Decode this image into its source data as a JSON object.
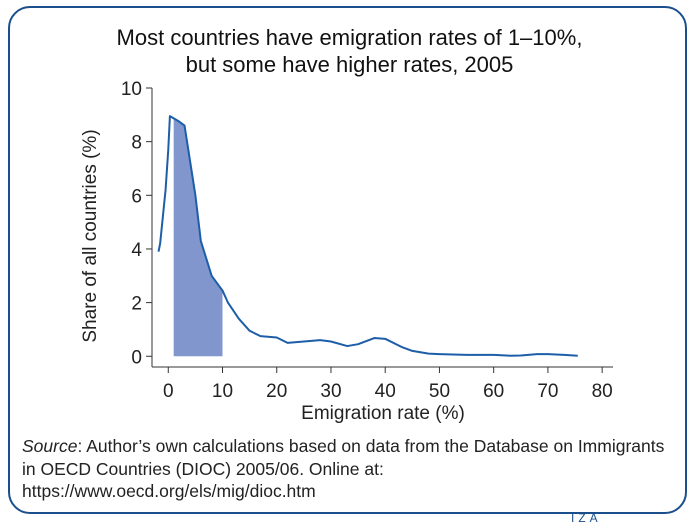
{
  "chart_data": {
    "type": "area",
    "title_line1": "Most countries have emigration rates of 1–10%,",
    "title_line2": "but some have higher rates, 2005",
    "xlabel": "Emigration rate (%)",
    "ylabel": "Share of all countries (%)",
    "xlim": [
      -3,
      82
    ],
    "ylim": [
      -0.4,
      10
    ],
    "x_ticks": [
      0,
      10,
      20,
      30,
      40,
      50,
      60,
      70,
      80
    ],
    "y_ticks": [
      0,
      2,
      4,
      6,
      8,
      10
    ],
    "grid": false,
    "series": [
      {
        "x": [
          -1.8,
          -1.5,
          -1,
          -0.5,
          0,
          0.3,
          2,
          3,
          4,
          5,
          6,
          8,
          10,
          11,
          13,
          15,
          17,
          20,
          22,
          25,
          28,
          30,
          33,
          35,
          38,
          40,
          43,
          45,
          48,
          50,
          55,
          60,
          63,
          65,
          68,
          70,
          73,
          75.5
        ],
        "y": [
          3.9,
          4.2,
          5.2,
          6.2,
          7.7,
          8.95,
          8.75,
          8.6,
          7.3,
          6.0,
          4.3,
          3.0,
          2.45,
          2.0,
          1.4,
          0.95,
          0.75,
          0.7,
          0.5,
          0.55,
          0.6,
          0.55,
          0.38,
          0.45,
          0.68,
          0.65,
          0.35,
          0.2,
          0.1,
          0.08,
          0.05,
          0.05,
          0.02,
          0.03,
          0.08,
          0.08,
          0.05,
          0.02
        ]
      }
    ],
    "highlight_range": [
      1,
      10
    ],
    "line_color": "#1d5ea8",
    "fill_color": "#8096cc"
  },
  "source": {
    "label": "Source",
    "text": ": Author’s own calculations based on data from the Database on Immigrants in OECD Countries (DIOC) 2005/06. Online at: https://www.oecd.org/els/mig/dioc.htm"
  },
  "logo": {
    "text": "IZA"
  }
}
